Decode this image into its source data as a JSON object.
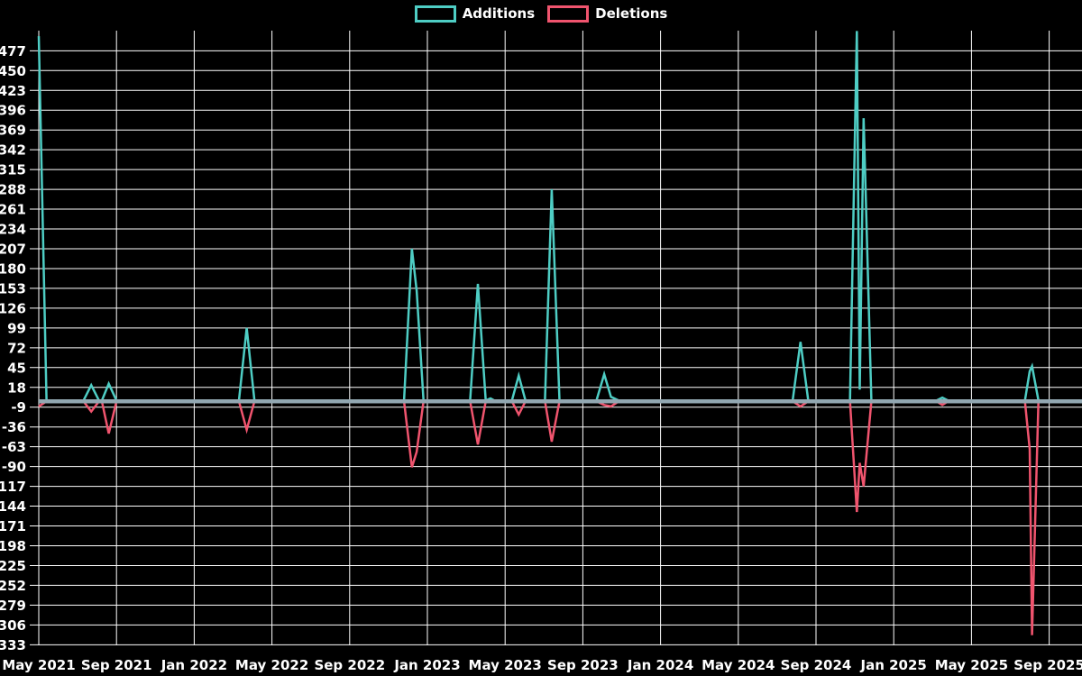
{
  "legend": {
    "items": [
      {
        "label": "Additions",
        "color": "#4ecdc4"
      },
      {
        "label": "Deletions",
        "color": "#f0546e"
      }
    ]
  },
  "chart_data": {
    "type": "line",
    "legend_position": "top-center",
    "background_color": "#000000",
    "grid_color": "#ffffff",
    "text_color": "#ffffff",
    "zero_baseline_color": "#92a8b2",
    "grid": true,
    "x_axis": {
      "tick_labels": [
        "May 2021",
        "Sep 2021",
        "Jan 2022",
        "May 2022",
        "Sep 2022",
        "Jan 2023",
        "May 2023",
        "Sep 2023",
        "Jan 2024",
        "May 2024",
        "Sep 2024",
        "Jan 2025",
        "May 2025",
        "Sep 2025"
      ],
      "months_between_ticks": 4
    },
    "y_axis": {
      "tick_max": 477,
      "tick_min": -333,
      "tick_step": 27,
      "range": [
        -345,
        504
      ]
    },
    "series_meta": [
      {
        "name": "Additions",
        "color": "#4ecdc4"
      },
      {
        "name": "Deletions",
        "color": "#f0546e"
      }
    ],
    "points_format": "[months_since_May_2021, additions, deletions]",
    "points": [
      [
        0,
        497,
        -8
      ],
      [
        0.4,
        0,
        -1
      ],
      [
        2.3,
        0,
        -1
      ],
      [
        2.7,
        21,
        -15
      ],
      [
        3.1,
        0,
        -1
      ],
      [
        3.25,
        0,
        -1
      ],
      [
        3.6,
        23,
        -45
      ],
      [
        4.0,
        0,
        -1
      ],
      [
        10.3,
        0,
        -1
      ],
      [
        10.7,
        99,
        -40
      ],
      [
        11.1,
        0,
        -1
      ],
      [
        18.8,
        0,
        -1
      ],
      [
        19.2,
        207,
        -91
      ],
      [
        19.45,
        150,
        -70
      ],
      [
        19.8,
        0,
        -1
      ],
      [
        22.2,
        0,
        -1
      ],
      [
        22.6,
        159,
        -60
      ],
      [
        23.0,
        0,
        -1
      ],
      [
        23.25,
        3,
        -2
      ],
      [
        23.45,
        0,
        -1
      ],
      [
        24.35,
        0,
        -1
      ],
      [
        24.7,
        34,
        -19
      ],
      [
        25.05,
        0,
        -1
      ],
      [
        26.05,
        0,
        -1
      ],
      [
        26.4,
        288,
        -56
      ],
      [
        26.8,
        0,
        -1
      ],
      [
        28.7,
        0,
        -1
      ],
      [
        29.1,
        36,
        -6
      ],
      [
        29.45,
        5,
        -8
      ],
      [
        29.85,
        0,
        -1
      ],
      [
        38.8,
        0,
        -1
      ],
      [
        39.2,
        80,
        -8
      ],
      [
        39.6,
        0,
        -1
      ],
      [
        41.75,
        0,
        -1
      ],
      [
        42.1,
        504,
        -152
      ],
      [
        42.25,
        15,
        -85
      ],
      [
        42.45,
        385,
        -117
      ],
      [
        42.85,
        0,
        -1
      ],
      [
        46.2,
        0,
        -1
      ],
      [
        46.5,
        4,
        -6
      ],
      [
        46.8,
        0,
        -1
      ],
      [
        50.75,
        0,
        -1
      ],
      [
        51.0,
        40,
        -66
      ],
      [
        51.12,
        47,
        -320
      ],
      [
        51.45,
        0,
        -1
      ],
      [
        53.7,
        0,
        -1
      ]
    ]
  }
}
